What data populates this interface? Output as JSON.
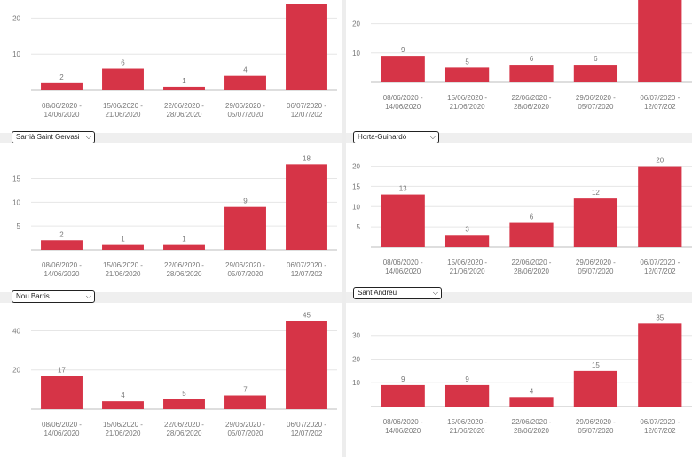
{
  "dropdowns": {
    "sarria": {
      "value": "Sarrià Saint Gervasi"
    },
    "horta": {
      "value": "Horta-Guinardó"
    },
    "nou": {
      "value": "Nou Barris"
    },
    "andreu": {
      "value": "Sant Andreu"
    }
  },
  "colors": {
    "bar": "#d63447",
    "grid": "#e6e6e6",
    "axis": "#bdbdbd",
    "text": "#777777"
  },
  "chart_data": [
    {
      "id": "c1",
      "type": "bar",
      "categories": [
        [
          "08/06/2020 -",
          "14/06/2020"
        ],
        [
          "15/06/2020 -",
          "21/06/2020"
        ],
        [
          "22/06/2020 -",
          "28/06/2020"
        ],
        [
          "29/06/2020 -",
          "05/07/2020"
        ],
        [
          "06/07/2020 -",
          "12/07/202"
        ]
      ],
      "values": [
        2,
        6,
        1,
        4,
        24
      ],
      "labels": [
        "2",
        "6",
        "1",
        "4",
        ""
      ],
      "yticks": [
        10,
        20
      ],
      "ylim": [
        0,
        25
      ],
      "grid": true
    },
    {
      "id": "c2",
      "type": "bar",
      "categories": [
        [
          "08/06/2020 -",
          "14/06/2020"
        ],
        [
          "15/06/2020 -",
          "21/06/2020"
        ],
        [
          "22/06/2020 -",
          "28/06/2020"
        ],
        [
          "29/06/2020 -",
          "05/07/2020"
        ],
        [
          "06/07/2020 -",
          "12/07/202"
        ]
      ],
      "values": [
        9,
        5,
        6,
        6,
        28
      ],
      "labels": [
        "9",
        "5",
        "6",
        "6",
        ""
      ],
      "yticks": [
        10,
        20
      ],
      "ylim": [
        0,
        28
      ],
      "grid": true
    },
    {
      "id": "c3",
      "type": "bar",
      "categories": [
        [
          "08/06/2020 -",
          "14/06/2020"
        ],
        [
          "15/06/2020 -",
          "21/06/2020"
        ],
        [
          "22/06/2020 -",
          "28/06/2020"
        ],
        [
          "29/06/2020 -",
          "05/07/2020"
        ],
        [
          "06/07/2020 -",
          "12/07/202"
        ]
      ],
      "values": [
        2,
        1,
        1,
        9,
        18
      ],
      "labels": [
        "2",
        "1",
        "1",
        "9",
        "18"
      ],
      "yticks": [
        5,
        10,
        15
      ],
      "ylim": [
        0,
        19
      ],
      "grid": true
    },
    {
      "id": "c4",
      "type": "bar",
      "categories": [
        [
          "08/06/2020 -",
          "14/06/2020"
        ],
        [
          "15/06/2020 -",
          "21/06/2020"
        ],
        [
          "22/06/2020 -",
          "28/06/2020"
        ],
        [
          "29/06/2020 -",
          "05/07/2020"
        ],
        [
          "06/07/2020 -",
          "12/07/202"
        ]
      ],
      "values": [
        13,
        3,
        6,
        12,
        20
      ],
      "labels": [
        "13",
        "3",
        "6",
        "12",
        "20"
      ],
      "yticks": [
        5,
        10,
        15,
        20
      ],
      "ylim": [
        0,
        21
      ],
      "grid": true
    },
    {
      "id": "c5",
      "type": "bar",
      "categories": [
        [
          "08/06/2020 -",
          "14/06/2020"
        ],
        [
          "15/06/2020 -",
          "21/06/2020"
        ],
        [
          "22/06/2020 -",
          "28/06/2020"
        ],
        [
          "29/06/2020 -",
          "05/07/2020"
        ],
        [
          "06/07/2020 -",
          "12/07/202"
        ]
      ],
      "values": [
        17,
        4,
        5,
        7,
        45
      ],
      "labels": [
        "17",
        "4",
        "5",
        "7",
        "45"
      ],
      "yticks": [
        20,
        40
      ],
      "ylim": [
        0,
        47
      ],
      "grid": true
    },
    {
      "id": "c6",
      "type": "bar",
      "categories": [
        [
          "08/06/2020 -",
          "14/06/2020"
        ],
        [
          "15/06/2020 -",
          "21/06/2020"
        ],
        [
          "22/06/2020 -",
          "28/06/2020"
        ],
        [
          "29/06/2020 -",
          "05/07/2020"
        ],
        [
          "06/07/2020 -",
          "12/07/202"
        ]
      ],
      "values": [
        9,
        9,
        4,
        15,
        35
      ],
      "labels": [
        "9",
        "9",
        "4",
        "15",
        "35"
      ],
      "yticks": [
        10,
        20,
        30
      ],
      "ylim": [
        0,
        37
      ],
      "grid": true
    }
  ]
}
